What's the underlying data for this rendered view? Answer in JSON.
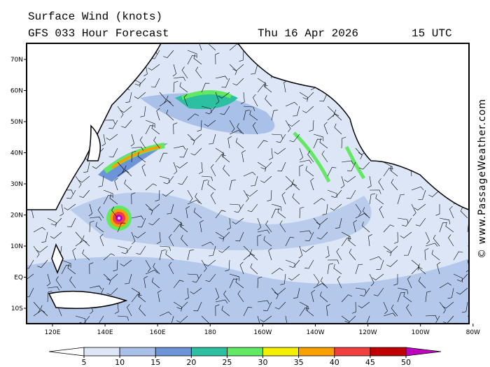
{
  "header": {
    "title": "Surface Wind (knots)",
    "subtitle": "GFS 033 Hour Forecast",
    "date": "Thu 16 Apr 2026",
    "time": "15 UTC"
  },
  "map": {
    "lat_labels": [
      "70N",
      "60N",
      "50N",
      "40N",
      "30N",
      "20N",
      "10N",
      "EQ",
      "10S"
    ],
    "lon_labels": [
      "120E",
      "140E",
      "160E",
      "180",
      "160W",
      "140W",
      "120W",
      "100W",
      "80W"
    ]
  },
  "legend": {
    "ticks": [
      5,
      10,
      15,
      20,
      25,
      30,
      35,
      40,
      45,
      50
    ],
    "colors": [
      "#ffffff",
      "#dce6f6",
      "#a9c0e8",
      "#6d93d8",
      "#2cc0a0",
      "#62e862",
      "#f4ee00",
      "#f8a000",
      "#f04040",
      "#c00000",
      "#c000c0"
    ]
  },
  "watermark": "© www.PassageWeather.com"
}
